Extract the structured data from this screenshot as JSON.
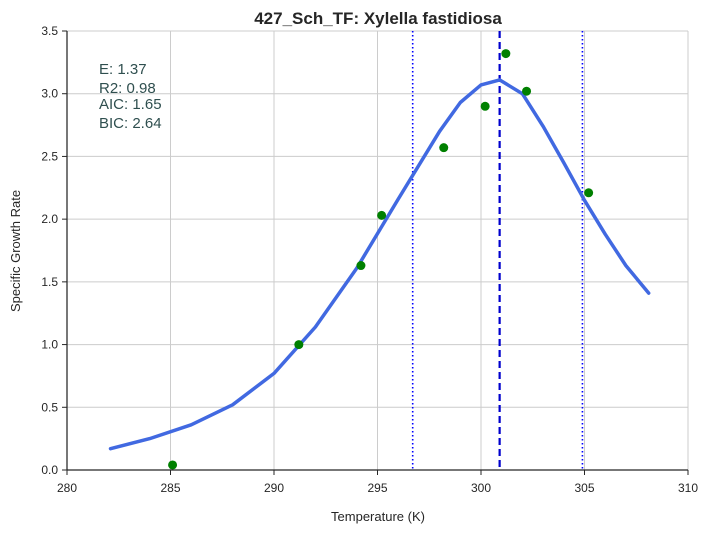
{
  "chart_data": {
    "type": "scatter",
    "title": "427_Sch_TF: Xylella fastidiosa",
    "xlabel": "Temperature (K)",
    "ylabel": "Specific Growth Rate",
    "xlim": [
      280,
      310
    ],
    "ylim": [
      0.0,
      3.5
    ],
    "xticks": [
      "280",
      "285",
      "290",
      "295",
      "300",
      "305",
      "310"
    ],
    "yticks": [
      "0.0",
      "0.5",
      "1.0",
      "1.5",
      "2.0",
      "2.5",
      "3.0",
      "3.5"
    ],
    "grid": true,
    "points": {
      "color": "#008000",
      "x": [
        285.1,
        291.2,
        294.2,
        295.2,
        298.2,
        300.2,
        301.2,
        302.2,
        305.2
      ],
      "y": [
        0.04,
        1.0,
        1.63,
        2.03,
        2.57,
        2.9,
        3.32,
        3.02,
        2.21
      ]
    },
    "fit_curve": {
      "color": "#4169e1",
      "x": [
        282.1,
        284.0,
        286.0,
        288.0,
        290.0,
        292.0,
        294.0,
        296.0,
        298.0,
        299.0,
        300.0,
        300.9,
        302.0,
        303.0,
        304.0,
        305.0,
        306.0,
        307.0,
        308.1
      ],
      "y": [
        0.17,
        0.25,
        0.36,
        0.52,
        0.77,
        1.14,
        1.61,
        2.16,
        2.7,
        2.93,
        3.07,
        3.11,
        3.0,
        2.74,
        2.45,
        2.15,
        1.88,
        1.63,
        1.41
      ]
    },
    "vlines": [
      {
        "x": 300.9,
        "style": "dashed",
        "color": "#0000cd"
      },
      {
        "x": 296.7,
        "style": "dotted",
        "color": "#0000ff"
      },
      {
        "x": 304.9,
        "style": "dotted",
        "color": "#0000ff"
      }
    ],
    "stats": {
      "e": "E:  1.37",
      "r2": "R2:  0.98",
      "aic": "AIC: 1.65",
      "bic": "BIC: 2.64"
    }
  }
}
